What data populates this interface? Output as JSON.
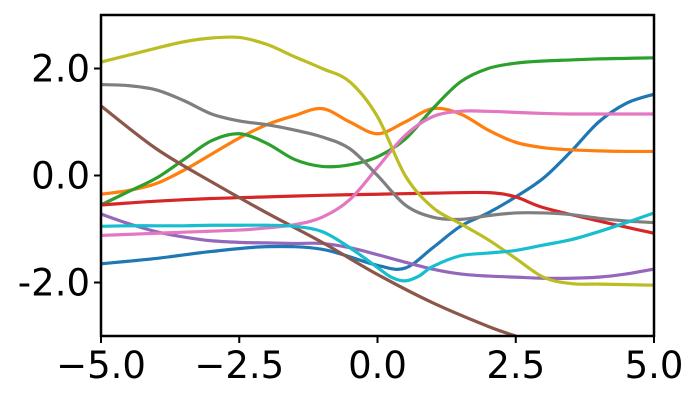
{
  "chart_data": {
    "type": "line",
    "title": "",
    "xlabel": "",
    "ylabel": "",
    "xlim": [
      -5.0,
      5.0
    ],
    "ylim": [
      -3.0,
      3.0
    ],
    "grid": false,
    "xticks": [
      -5.0,
      -2.5,
      0.0,
      2.5,
      5.0
    ],
    "xtick_labels": [
      "−5.0",
      "−2.5",
      "0.0",
      "2.5",
      "5.0"
    ],
    "yticks": [
      -2.0,
      0.0,
      2.0
    ],
    "ytick_labels": [
      "-2.0",
      "0.0",
      "2.0"
    ],
    "series": [
      {
        "color": "#1f77b4",
        "x": [
          -5,
          -4,
          -3,
          -2,
          -1,
          0,
          0.5,
          1,
          1.5,
          2,
          2.5,
          3,
          3.5,
          4,
          4.5,
          5
        ],
        "y": [
          -1.65,
          -1.55,
          -1.42,
          -1.33,
          -1.38,
          -1.68,
          -1.73,
          -1.35,
          -0.95,
          -0.7,
          -0.4,
          -0.05,
          0.45,
          1.0,
          1.35,
          1.52
        ]
      },
      {
        "color": "#ff7f0e",
        "x": [
          -5,
          -4.5,
          -4,
          -3.5,
          -3,
          -2.5,
          -2,
          -1.5,
          -1,
          -0.5,
          0,
          0.5,
          1,
          1.5,
          2,
          2.5,
          3,
          3.5,
          4,
          4.5,
          5
        ],
        "y": [
          -0.35,
          -0.28,
          -0.15,
          0.1,
          0.4,
          0.7,
          0.95,
          1.12,
          1.25,
          1.0,
          0.78,
          1.0,
          1.25,
          1.15,
          0.85,
          0.62,
          0.52,
          0.48,
          0.46,
          0.45,
          0.45
        ]
      },
      {
        "color": "#2ca02c",
        "x": [
          -5,
          -4.5,
          -4,
          -3.5,
          -3,
          -2.5,
          -2,
          -1.5,
          -1,
          -0.5,
          0,
          0.5,
          1,
          1.5,
          2,
          2.5,
          3,
          3.5,
          4,
          4.5,
          5
        ],
        "y": [
          -0.55,
          -0.3,
          -0.05,
          0.3,
          0.65,
          0.78,
          0.6,
          0.3,
          0.17,
          0.2,
          0.35,
          0.68,
          1.25,
          1.75,
          2.0,
          2.1,
          2.14,
          2.16,
          2.18,
          2.19,
          2.2
        ]
      },
      {
        "color": "#d62728",
        "x": [
          -5,
          -4,
          -3,
          -2,
          -1,
          0,
          1,
          2,
          2.5,
          3,
          4,
          5
        ],
        "y": [
          -0.55,
          -0.48,
          -0.43,
          -0.4,
          -0.37,
          -0.35,
          -0.33,
          -0.32,
          -0.4,
          -0.6,
          -0.85,
          -1.08
        ]
      },
      {
        "color": "#9467bd",
        "x": [
          -5,
          -4.5,
          -4,
          -3.5,
          -3,
          -2.5,
          -2,
          -1.5,
          -1,
          -0.5,
          0,
          0.5,
          1,
          1.5,
          2,
          2.5,
          3,
          3.5,
          4,
          4.5,
          5
        ],
        "y": [
          -0.72,
          -0.9,
          -1.05,
          -1.15,
          -1.22,
          -1.25,
          -1.26,
          -1.27,
          -1.27,
          -1.35,
          -1.48,
          -1.62,
          -1.75,
          -1.84,
          -1.88,
          -1.9,
          -1.92,
          -1.92,
          -1.9,
          -1.84,
          -1.75
        ]
      },
      {
        "color": "#8c564b",
        "x": [
          -5,
          -4,
          -3,
          -2,
          -1,
          0,
          1,
          2,
          2.5
        ],
        "y": [
          1.3,
          0.5,
          -0.12,
          -0.7,
          -1.25,
          -1.85,
          -2.38,
          -2.82,
          -3.0
        ]
      },
      {
        "color": "#e377c2",
        "x": [
          -5,
          -4.5,
          -4,
          -3.5,
          -3,
          -2.5,
          -2,
          -1.5,
          -1,
          -0.5,
          0,
          0.5,
          1,
          1.5,
          2,
          2.5,
          3,
          3.5,
          4,
          4.5,
          5
        ],
        "y": [
          -1.12,
          -1.1,
          -1.08,
          -1.06,
          -1.04,
          -1.02,
          -0.98,
          -0.92,
          -0.78,
          -0.45,
          0.15,
          0.75,
          1.1,
          1.2,
          1.2,
          1.18,
          1.16,
          1.15,
          1.15,
          1.15,
          1.15
        ]
      },
      {
        "color": "#7f7f7f",
        "x": [
          -5,
          -4.5,
          -4,
          -3.5,
          -3,
          -2.5,
          -2,
          -1.5,
          -1,
          -0.5,
          0,
          0.5,
          1,
          1.5,
          2,
          2.5,
          3,
          3.5,
          4,
          4.5,
          5
        ],
        "y": [
          1.7,
          1.68,
          1.6,
          1.4,
          1.15,
          1.02,
          0.95,
          0.85,
          0.72,
          0.5,
          0.0,
          -0.55,
          -0.78,
          -0.82,
          -0.75,
          -0.7,
          -0.7,
          -0.73,
          -0.8,
          -0.85,
          -0.88
        ]
      },
      {
        "color": "#bcbd22",
        "x": [
          -5,
          -4.5,
          -4,
          -3.5,
          -3,
          -2.5,
          -2,
          -1.5,
          -1,
          -0.5,
          0,
          0.5,
          1,
          1.5,
          2,
          2.5,
          3,
          3.5,
          4,
          4.5,
          5
        ],
        "y": [
          2.12,
          2.25,
          2.38,
          2.5,
          2.57,
          2.58,
          2.45,
          2.22,
          2.0,
          1.75,
          1.1,
          0.0,
          -0.6,
          -0.9,
          -1.2,
          -1.55,
          -1.9,
          -2.02,
          -2.03,
          -2.04,
          -2.05
        ]
      },
      {
        "color": "#17becf",
        "x": [
          -5,
          -4.5,
          -4,
          -3.5,
          -3,
          -2.5,
          -2,
          -1.5,
          -1,
          -0.5,
          0,
          0.25,
          0.5,
          0.75,
          1,
          1.5,
          2,
          2.5,
          3,
          3.5,
          4,
          4.5,
          5
        ],
        "y": [
          -0.95,
          -0.94,
          -0.94,
          -0.94,
          -0.93,
          -0.93,
          -0.93,
          -0.95,
          -1.05,
          -1.35,
          -1.72,
          -1.9,
          -1.97,
          -1.88,
          -1.7,
          -1.5,
          -1.45,
          -1.4,
          -1.3,
          -1.2,
          -1.05,
          -0.88,
          -0.7
        ]
      }
    ]
  }
}
